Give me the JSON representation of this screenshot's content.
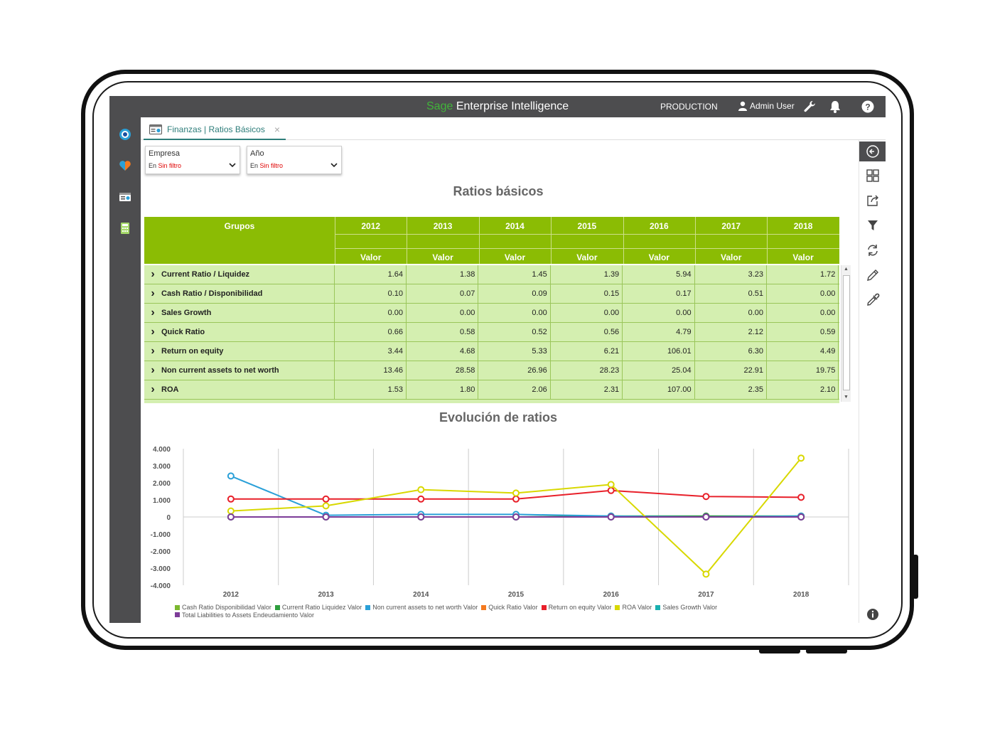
{
  "app": {
    "brand_prefix": "Sage",
    "brand_suffix": " Enterprise Intelligence",
    "environment": "PRODUCTION",
    "user": "Admin User"
  },
  "tab": {
    "label": "Finanzas | Ratios Básicos",
    "close": "×"
  },
  "filters": [
    {
      "label": "Empresa",
      "prefix": "En ",
      "value": "Sin filtro"
    },
    {
      "label": "Año",
      "prefix": "En ",
      "value": "Sin filtro"
    }
  ],
  "table": {
    "title": "Ratios básicos",
    "group_header": "Grupos",
    "years": [
      "2012",
      "2013",
      "2014",
      "2015",
      "2016",
      "2017",
      "2018"
    ],
    "measure": "Valor",
    "rows": [
      {
        "name": "Current Ratio / Liquidez",
        "values": [
          "1.64",
          "1.38",
          "1.45",
          "1.39",
          "5.94",
          "3.23",
          "1.72"
        ]
      },
      {
        "name": "Cash Ratio / Disponibilidad",
        "values": [
          "0.10",
          "0.07",
          "0.09",
          "0.15",
          "0.17",
          "0.51",
          "0.00"
        ]
      },
      {
        "name": "Sales Growth",
        "values": [
          "0.00",
          "0.00",
          "0.00",
          "0.00",
          "0.00",
          "0.00",
          "0.00"
        ]
      },
      {
        "name": "Quick Ratio",
        "values": [
          "0.66",
          "0.58",
          "0.52",
          "0.56",
          "4.79",
          "2.12",
          "0.59"
        ]
      },
      {
        "name": "Return on equity",
        "values": [
          "3.44",
          "4.68",
          "5.33",
          "6.21",
          "106.01",
          "6.30",
          "4.49"
        ]
      },
      {
        "name": "Non current assets to net worth",
        "values": [
          "13.46",
          "28.58",
          "26.96",
          "28.23",
          "25.04",
          "22.91",
          "19.75"
        ]
      },
      {
        "name": "ROA",
        "values": [
          "1.53",
          "1.80",
          "2.06",
          "2.31",
          "107.00",
          "2.35",
          "2.10"
        ]
      }
    ]
  },
  "chart_data": {
    "type": "line",
    "title": "Evolución de ratios",
    "categories": [
      "2012",
      "2013",
      "2014",
      "2015",
      "2016",
      "2017",
      "2018"
    ],
    "ylim": [
      -4000,
      4000
    ],
    "yticks": [
      "4.000",
      "3.000",
      "2.000",
      "1.000",
      "0",
      "-1.000",
      "-2.000",
      "-3.000",
      "-4.000"
    ],
    "ytick_values": [
      4000,
      3000,
      2000,
      1000,
      0,
      -1000,
      -2000,
      -3000,
      -4000
    ],
    "grid": true,
    "legend_position": "bottom",
    "series": [
      {
        "name": "Cash Ratio Disponibilidad Valor",
        "color": "#7cb82f",
        "values": [
          0,
          0,
          0,
          0,
          0,
          0,
          0
        ]
      },
      {
        "name": "Current Ratio Liquidez Valor",
        "color": "#2e9e3e",
        "values": [
          0,
          0,
          0,
          0,
          50,
          50,
          50
        ]
      },
      {
        "name": "Non current assets to net worth Valor",
        "color": "#2aa0d8",
        "values": [
          2400,
          100,
          150,
          150,
          50,
          0,
          50
        ]
      },
      {
        "name": "Quick Ratio Valor",
        "color": "#f47a1f",
        "values": [
          0,
          0,
          0,
          0,
          0,
          0,
          0
        ]
      },
      {
        "name": "Return on equity Valor",
        "color": "#e8202a",
        "values": [
          1050,
          1050,
          1050,
          1050,
          1550,
          1200,
          1150
        ]
      },
      {
        "name": "ROA Valor",
        "color": "#d8d800",
        "values": [
          350,
          650,
          1600,
          1400,
          1900,
          -3350,
          3450
        ]
      },
      {
        "name": "Sales Growth Valor",
        "color": "#1ab0b0",
        "values": [
          0,
          0,
          0,
          0,
          0,
          0,
          0
        ]
      },
      {
        "name": "Total Liabilities to Assets Endeudamiento Valor",
        "color": "#7d3c98",
        "values": [
          0,
          0,
          0,
          0,
          0,
          0,
          0
        ]
      }
    ]
  },
  "colors": {
    "header_green": "#8bbc04",
    "row_green": "#d4efb0",
    "topbar": "#4d4d4f",
    "brand_green": "#41b43a",
    "tab_teal": "#2d7d7a"
  },
  "icons": {
    "left": [
      "target-icon",
      "heart-icon",
      "dashboard-icon",
      "calculator-icon"
    ],
    "right": [
      "back-icon",
      "grid-icon",
      "share-icon",
      "filter-icon",
      "refresh-icon",
      "pencil-icon",
      "eyedropper-icon",
      "info-icon"
    ],
    "top": [
      "user-icon",
      "wrench-icon",
      "bell-icon",
      "help-icon"
    ]
  }
}
